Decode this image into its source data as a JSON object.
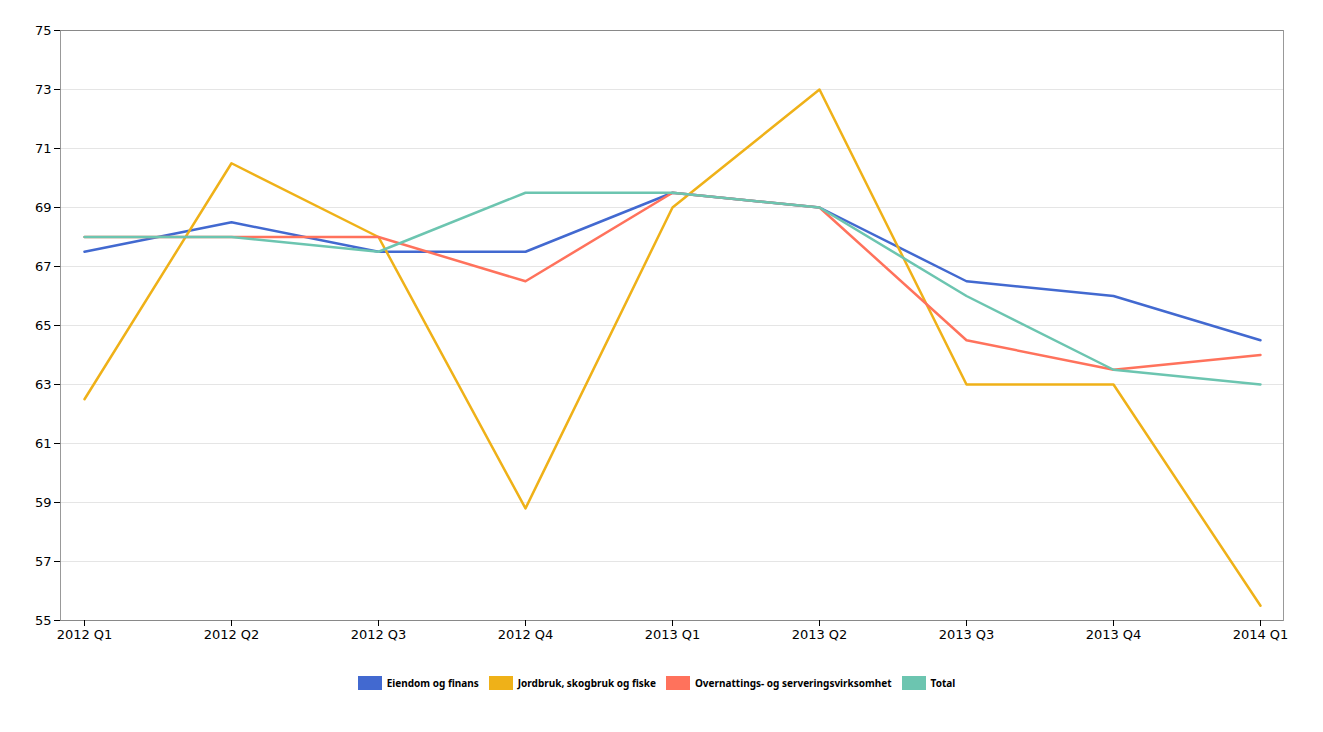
{
  "chart_data": {
    "type": "line",
    "categories": [
      "2012 Q1",
      "2012 Q2",
      "2012 Q3",
      "2012 Q4",
      "2013 Q1",
      "2013 Q2",
      "2013 Q3",
      "2013 Q4",
      "2014 Q1"
    ],
    "series": [
      {
        "name": "Eiendom og finans",
        "values": [
          67.5,
          68.5,
          67.5,
          67.5,
          69.5,
          69.0,
          66.5,
          66.0,
          64.5
        ]
      },
      {
        "name": "Jordbruk, skogbruk og fiske",
        "values": [
          62.5,
          70.5,
          68.0,
          58.8,
          69.0,
          73.0,
          63.0,
          63.0,
          55.5
        ]
      },
      {
        "name": "Overnattings- og serveringsvirksomhet",
        "values": [
          68.0,
          68.0,
          68.0,
          66.5,
          69.5,
          69.0,
          64.5,
          63.5,
          64.0
        ]
      },
      {
        "name": "Total",
        "values": [
          68.0,
          68.0,
          67.5,
          69.5,
          69.5,
          69.0,
          66.0,
          63.5,
          63.0
        ]
      }
    ],
    "ylim": [
      55,
      75
    ],
    "yticks": [
      55,
      57,
      59,
      61,
      63,
      65,
      67,
      69,
      71,
      73,
      75
    ],
    "grid": "y",
    "legend": "bottom"
  }
}
